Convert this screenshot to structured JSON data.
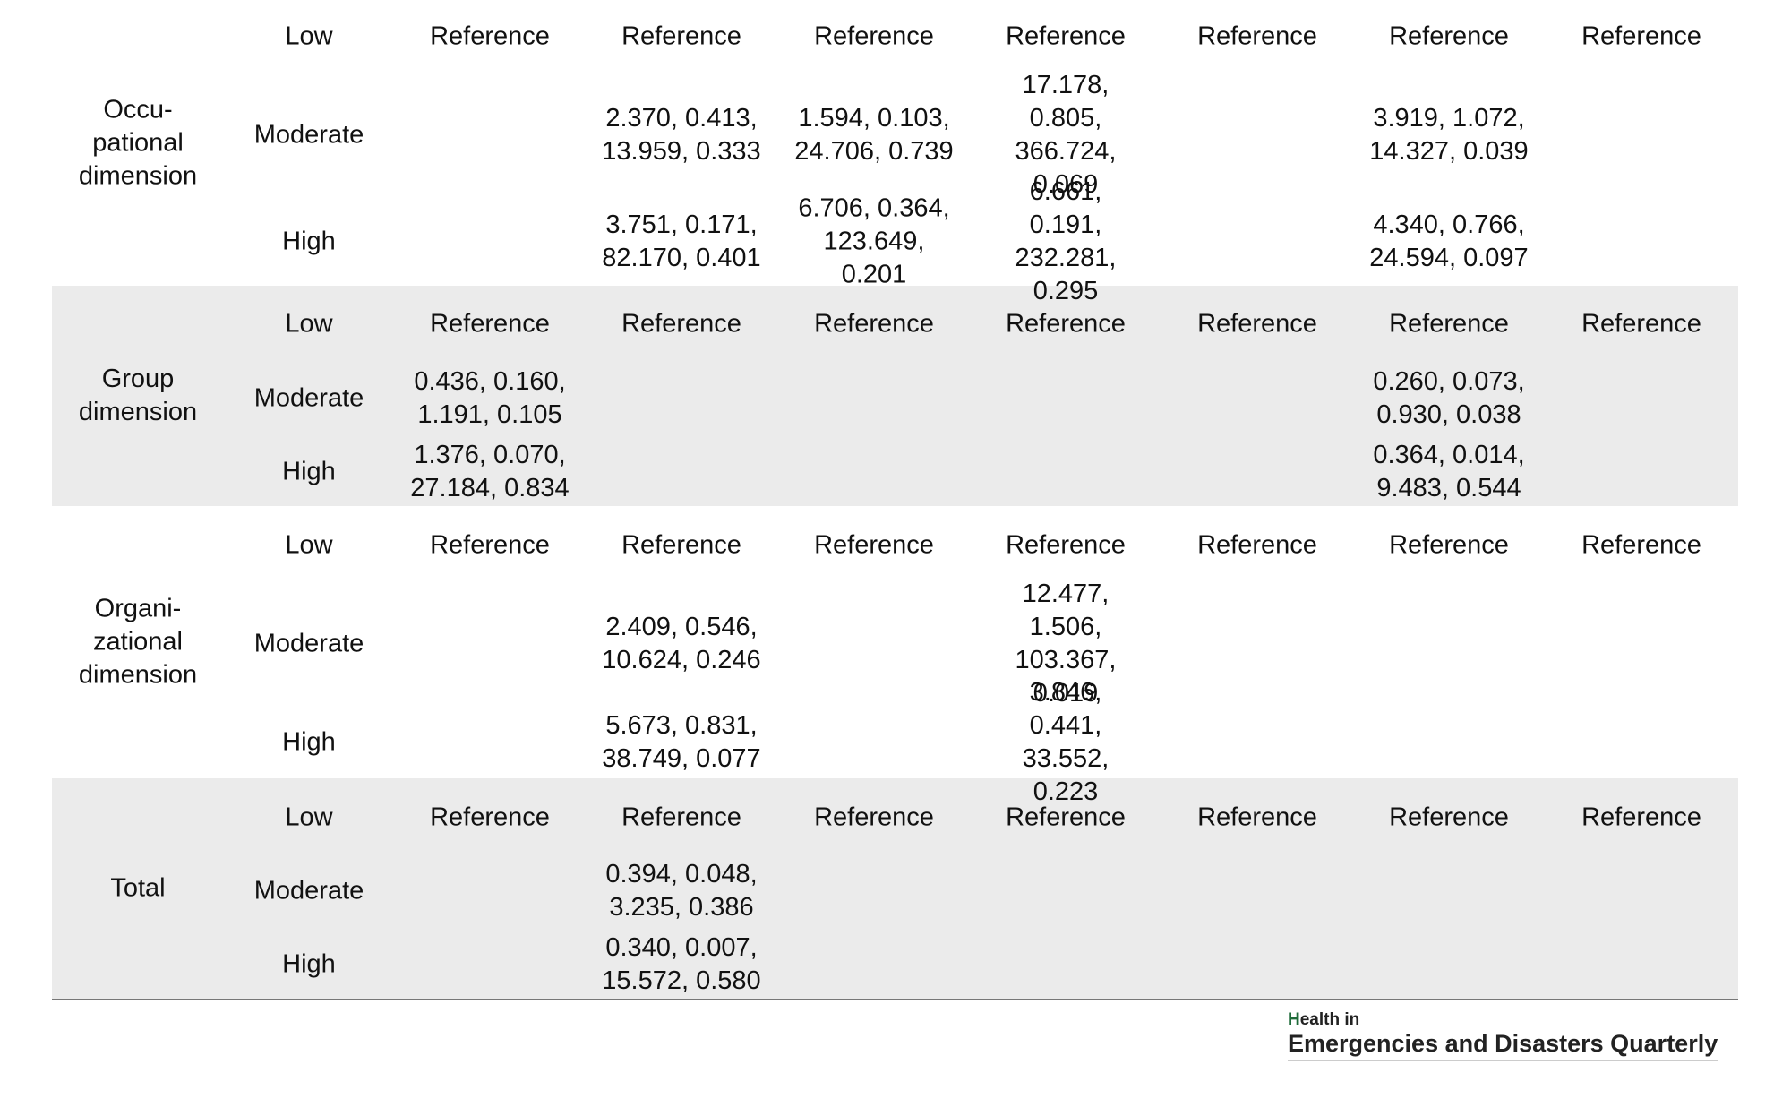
{
  "table": {
    "groups": [
      {
        "label": "Occu-pational dimension",
        "rows": [
          [
            "Low",
            "Reference",
            "Reference",
            "Reference",
            "Reference",
            "Reference",
            "Reference",
            "Reference"
          ],
          [
            "Moderate",
            null,
            "2.370, 0.413, 13.959, 0.333",
            "1.594, 0.103, 24.706, 0.739",
            "17.178, 0.805, 366.724, 0.069",
            null,
            "3.919, 1.072, 14.327, 0.039",
            null
          ],
          [
            "High",
            null,
            "3.751, 0.171, 82.170, 0.401",
            "6.706, 0.364, 123.649, 0.201",
            "6.661, 0.191, 232.281, 0.295",
            null,
            "4.340, 0.766, 24.594, 0.097",
            null
          ]
        ]
      },
      {
        "label": "Group dimension",
        "rows": [
          [
            "Low",
            "Reference",
            "Reference",
            "Reference",
            "Reference",
            "Reference",
            "Reference",
            "Reference"
          ],
          [
            "Moderate",
            "0.436, 0.160, 1.191, 0.105",
            null,
            null,
            null,
            null,
            "0.260, 0.073, 0.930, 0.038",
            null
          ],
          [
            "High",
            "1.376, 0.070, 27.184, 0.834",
            null,
            null,
            null,
            null,
            "0.364, 0.014, 9.483, 0.544",
            null
          ]
        ]
      },
      {
        "label": "Organi-zational dimension",
        "rows": [
          [
            "Low",
            "Reference",
            "Reference",
            "Reference",
            "Reference",
            "Reference",
            "Reference",
            "Reference"
          ],
          [
            "Moderate",
            null,
            "2.409, 0.546, 10.624, 0.246",
            null,
            "12.477, 1.506, 103.367, 0.019",
            null,
            null,
            null
          ],
          [
            "High",
            null,
            "5.673, 0.831, 38.749, 0.077",
            null,
            "3.846, 0.441, 33.552, 0.223",
            null,
            null,
            null
          ]
        ]
      },
      {
        "label": "Total",
        "rows": [
          [
            "Low",
            "Reference",
            "Reference",
            "Reference",
            "Reference",
            "Reference",
            "Reference",
            "Reference"
          ],
          [
            "Moderate",
            null,
            "0.394, 0.048, 3.235, 0.386",
            null,
            null,
            null,
            null,
            null
          ],
          [
            "High",
            null,
            "0.340, 0.007, 15.572, 0.580",
            null,
            null,
            null,
            null,
            null
          ]
        ]
      }
    ]
  },
  "logo": {
    "line1": "Health in",
    "line2": "Emergencies and Disasters Quarterly"
  }
}
